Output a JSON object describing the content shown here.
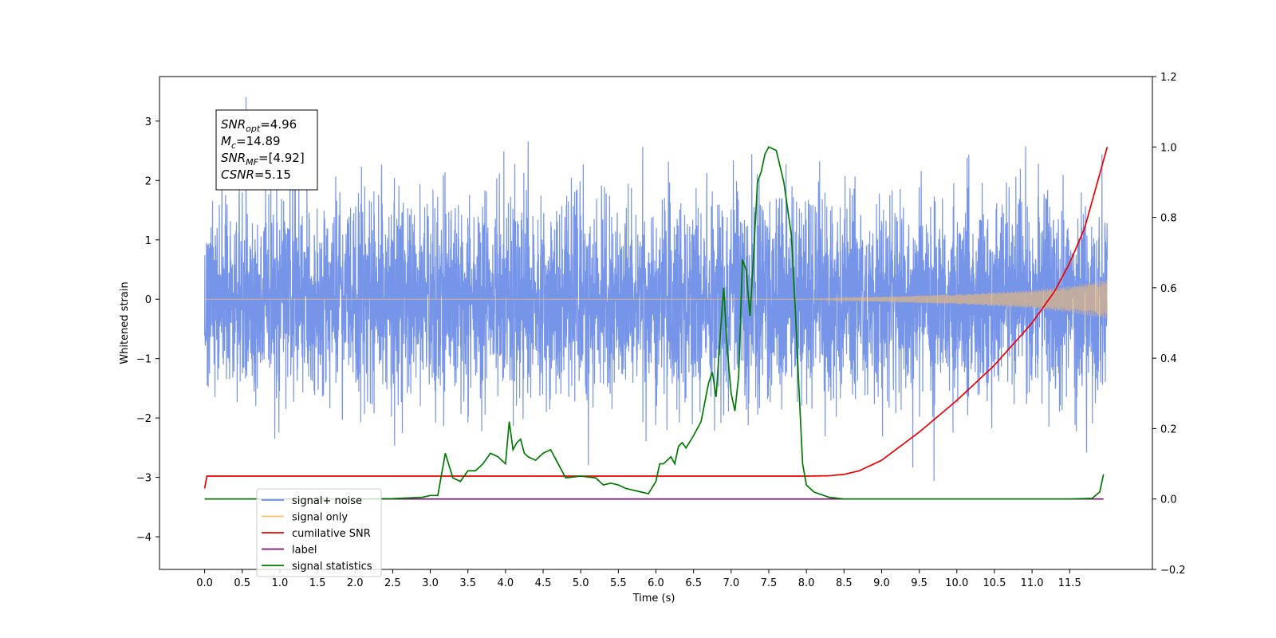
{
  "chart_data": {
    "type": "line",
    "xlabel": "Time (s)",
    "ylabel": "Whitened strain",
    "xlim": [
      -0.6,
      12.6
    ],
    "ylim": [
      -4.55,
      3.75
    ],
    "y2lim": [
      -0.2,
      1.2
    ],
    "x_ticks": [
      "0.0",
      "0.5",
      "1.0",
      "1.5",
      "2.0",
      "2.5",
      "3.0",
      "3.5",
      "4.0",
      "4.5",
      "5.0",
      "5.5",
      "6.0",
      "6.5",
      "7.0",
      "7.5",
      "8.0",
      "8.5",
      "9.0",
      "9.5",
      "10.0",
      "10.5",
      "11.0",
      "11.5"
    ],
    "y_ticks": [
      "3",
      "2",
      "1",
      "0",
      "−1",
      "−2",
      "−3",
      "−4"
    ],
    "y2_ticks": [
      "1.2",
      "1.0",
      "0.8",
      "0.6",
      "0.4",
      "0.2",
      "0.0",
      "−0.2"
    ],
    "annotation": {
      "lines": [
        {
          "sym": "SNR",
          "sub": "opt",
          "val": "=4.96"
        },
        {
          "sym": "M",
          "sub": "c",
          "val": "=14.89"
        },
        {
          "sym": "SNR",
          "sub": "MF",
          "val": "=[4.92]"
        },
        {
          "sym": "CSNR",
          "sub": "",
          "val": "=5.15"
        }
      ]
    },
    "legend": {
      "position": "lower-left",
      "entries": [
        {
          "label": "signal+ noise",
          "color": "#6a8be6"
        },
        {
          "label": "signal only",
          "color": "#ffbf66"
        },
        {
          "label": "cumilative SNR",
          "color": "#ee0000"
        },
        {
          "label": "label",
          "color": "#7b0e7b"
        },
        {
          "label": "signal statistics",
          "color": "#007a00"
        }
      ]
    },
    "series": [
      {
        "name": "signal+ noise",
        "axis": "left",
        "color": "#6a8be6",
        "duration": 12.0,
        "noise_sigma": 0.85,
        "ymin": -4.1,
        "ymax": 3.4
      },
      {
        "name": "signal only",
        "axis": "left",
        "color": "#ffbf66",
        "x": [
          0,
          8.0,
          9.0,
          10.0,
          11.0,
          11.5,
          12.0
        ],
        "amplitude": [
          0.0,
          0.0,
          0.04,
          0.08,
          0.15,
          0.22,
          0.33
        ]
      },
      {
        "name": "cumilative SNR",
        "axis": "right",
        "color": "#ee0000",
        "x": [
          0,
          0.01,
          0.03,
          1,
          2,
          3,
          4,
          5,
          6,
          7,
          8,
          8.3,
          8.5,
          8.7,
          9.0,
          9.5,
          10.0,
          10.5,
          11.0,
          11.3,
          11.5,
          11.7,
          12.0
        ],
        "values": [
          0.03,
          0.065,
          0.065,
          0.065,
          0.065,
          0.065,
          0.065,
          0.065,
          0.065,
          0.065,
          0.065,
          0.066,
          0.07,
          0.08,
          0.11,
          0.19,
          0.28,
          0.38,
          0.5,
          0.59,
          0.67,
          0.77,
          1.0
        ]
      },
      {
        "name": "label",
        "axis": "right",
        "color": "#7b0e7b",
        "x": [
          0,
          11.95
        ],
        "values": [
          0.0,
          0.0
        ]
      },
      {
        "name": "signal statistics",
        "axis": "right",
        "color": "#007a00",
        "x": [
          0,
          1,
          2,
          2.5,
          2.9,
          3.0,
          3.1,
          3.2,
          3.3,
          3.4,
          3.5,
          3.6,
          3.7,
          3.8,
          3.9,
          4.0,
          4.05,
          4.1,
          4.15,
          4.2,
          4.25,
          4.3,
          4.4,
          4.5,
          4.6,
          4.7,
          4.8,
          5.0,
          5.2,
          5.3,
          5.4,
          5.5,
          5.6,
          5.7,
          5.8,
          5.9,
          6.0,
          6.05,
          6.1,
          6.2,
          6.25,
          6.3,
          6.35,
          6.4,
          6.5,
          6.6,
          6.7,
          6.75,
          6.8,
          6.85,
          6.9,
          6.95,
          7.0,
          7.05,
          7.1,
          7.15,
          7.2,
          7.25,
          7.3,
          7.35,
          7.4,
          7.45,
          7.5,
          7.6,
          7.7,
          7.8,
          7.85,
          7.9,
          7.95,
          8.0,
          8.1,
          8.3,
          8.5,
          9.0,
          10.0,
          11.0,
          11.5,
          11.8,
          11.9,
          11.95
        ],
        "values": [
          0.0,
          0.0,
          0.0,
          0.001,
          0.005,
          0.01,
          0.01,
          0.13,
          0.06,
          0.05,
          0.08,
          0.08,
          0.1,
          0.13,
          0.12,
          0.1,
          0.22,
          0.14,
          0.16,
          0.17,
          0.13,
          0.12,
          0.11,
          0.13,
          0.14,
          0.1,
          0.06,
          0.065,
          0.06,
          0.04,
          0.045,
          0.04,
          0.03,
          0.025,
          0.02,
          0.015,
          0.05,
          0.1,
          0.1,
          0.12,
          0.1,
          0.15,
          0.16,
          0.145,
          0.18,
          0.22,
          0.33,
          0.36,
          0.29,
          0.45,
          0.6,
          0.42,
          0.3,
          0.25,
          0.35,
          0.68,
          0.65,
          0.52,
          0.7,
          0.9,
          0.93,
          0.98,
          1.0,
          0.99,
          0.9,
          0.75,
          0.55,
          0.32,
          0.1,
          0.04,
          0.02,
          0.005,
          0.0,
          0.0,
          0.0,
          0.0,
          0.0,
          0.002,
          0.02,
          0.07
        ]
      }
    ]
  }
}
